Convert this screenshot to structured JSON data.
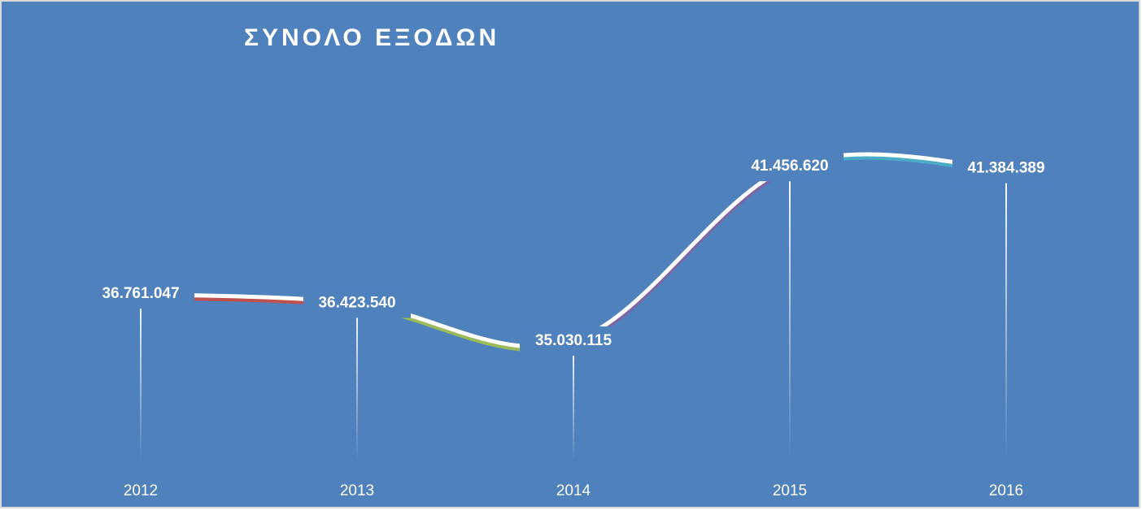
{
  "chart_data": {
    "type": "line",
    "title": "ΣΥΝΟΛΟ ΕΞΟΔΩΝ",
    "categories": [
      "2012",
      "2013",
      "2014",
      "2015",
      "2016"
    ],
    "series": [
      {
        "color": "#ffffff",
        "values": [
          36761047,
          36423540,
          35030115,
          41456620,
          41384389
        ],
        "value_labels": [
          "36.761.047",
          "36.423.540",
          "35.030.115",
          "41.456.620",
          "41.384.389"
        ]
      }
    ],
    "segment_colors": [
      "#c0504d",
      "#9bbb59",
      "#8064a2",
      "#4bacc6"
    ],
    "ylim": [
      30600000,
      46400000
    ],
    "background": "#4f81bd"
  }
}
